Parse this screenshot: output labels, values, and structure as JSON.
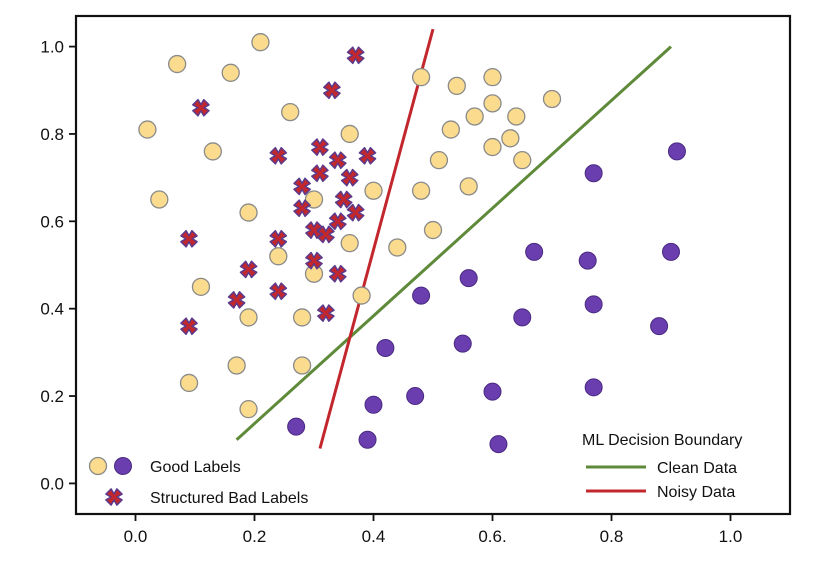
{
  "chart_data": {
    "type": "scatter",
    "xlim": [
      -0.1,
      1.1
    ],
    "ylim": [
      -0.07,
      1.07
    ],
    "xticks": [
      0.0,
      0.2,
      0.4,
      0.6,
      0.8,
      1.0
    ],
    "xtick_labels": [
      "0.0",
      "0.2",
      "0.4",
      "0.6.",
      "0.8",
      "1.0"
    ],
    "yticks": [
      0.0,
      0.2,
      0.4,
      0.6,
      0.8,
      1.0
    ],
    "ytick_labels": [
      "0.0",
      "0.2",
      "0.4",
      "0.6",
      "0.8",
      "1.0"
    ],
    "grid": false,
    "colors": {
      "yellow_fill": "#fbdc8e",
      "yellow_edge": "#8a8a8a",
      "purple_fill": "#6a3eae",
      "cross_fill": "#c1272d",
      "cross_edge": "#5b3a8c",
      "clean_line": "#5e8a3a",
      "noisy_line": "#c1272d"
    },
    "series": [
      {
        "marker": "yellow-circle",
        "points": [
          [
            0.21,
            1.01
          ],
          [
            0.07,
            0.96
          ],
          [
            0.16,
            0.94
          ],
          [
            0.48,
            0.93
          ],
          [
            0.6,
            0.93
          ],
          [
            0.54,
            0.91
          ],
          [
            0.6,
            0.87
          ],
          [
            0.7,
            0.88
          ],
          [
            0.57,
            0.84
          ],
          [
            0.64,
            0.84
          ],
          [
            0.26,
            0.85
          ],
          [
            0.53,
            0.81
          ],
          [
            0.63,
            0.79
          ],
          [
            0.6,
            0.77
          ],
          [
            0.02,
            0.81
          ],
          [
            0.36,
            0.8
          ],
          [
            0.13,
            0.76
          ],
          [
            0.51,
            0.74
          ],
          [
            0.65,
            0.74
          ],
          [
            0.04,
            0.65
          ],
          [
            0.48,
            0.67
          ],
          [
            0.56,
            0.68
          ],
          [
            0.4,
            0.67
          ],
          [
            0.3,
            0.65
          ],
          [
            0.19,
            0.62
          ],
          [
            0.5,
            0.58
          ],
          [
            0.36,
            0.55
          ],
          [
            0.44,
            0.54
          ],
          [
            0.24,
            0.52
          ],
          [
            0.3,
            0.48
          ],
          [
            0.11,
            0.45
          ],
          [
            0.38,
            0.43
          ],
          [
            0.19,
            0.38
          ],
          [
            0.28,
            0.38
          ],
          [
            0.17,
            0.27
          ],
          [
            0.28,
            0.27
          ],
          [
            0.09,
            0.23
          ],
          [
            0.19,
            0.17
          ]
        ]
      },
      {
        "marker": "purple-circle",
        "points": [
          [
            0.91,
            0.76
          ],
          [
            0.77,
            0.71
          ],
          [
            0.67,
            0.53
          ],
          [
            0.76,
            0.51
          ],
          [
            0.9,
            0.53
          ],
          [
            0.56,
            0.47
          ],
          [
            0.48,
            0.43
          ],
          [
            0.77,
            0.41
          ],
          [
            0.65,
            0.38
          ],
          [
            0.88,
            0.36
          ],
          [
            0.55,
            0.32
          ],
          [
            0.42,
            0.31
          ],
          [
            0.77,
            0.22
          ],
          [
            0.6,
            0.21
          ],
          [
            0.47,
            0.2
          ],
          [
            0.4,
            0.18
          ],
          [
            0.27,
            0.13
          ],
          [
            0.39,
            0.1
          ],
          [
            0.61,
            0.09
          ]
        ]
      },
      {
        "marker": "red-cross",
        "points": [
          [
            0.37,
            0.98
          ],
          [
            0.33,
            0.9
          ],
          [
            0.11,
            0.86
          ],
          [
            0.24,
            0.75
          ],
          [
            0.31,
            0.77
          ],
          [
            0.34,
            0.74
          ],
          [
            0.39,
            0.75
          ],
          [
            0.31,
            0.71
          ],
          [
            0.36,
            0.7
          ],
          [
            0.28,
            0.68
          ],
          [
            0.35,
            0.65
          ],
          [
            0.28,
            0.63
          ],
          [
            0.37,
            0.62
          ],
          [
            0.34,
            0.6
          ],
          [
            0.3,
            0.58
          ],
          [
            0.32,
            0.57
          ],
          [
            0.09,
            0.56
          ],
          [
            0.24,
            0.56
          ],
          [
            0.3,
            0.51
          ],
          [
            0.19,
            0.49
          ],
          [
            0.34,
            0.48
          ],
          [
            0.24,
            0.44
          ],
          [
            0.17,
            0.42
          ],
          [
            0.32,
            0.39
          ],
          [
            0.09,
            0.36
          ]
        ]
      }
    ],
    "lines": [
      {
        "name": "Clean Data",
        "x": [
          0.17,
          0.9
        ],
        "y": [
          0.1,
          1.0
        ]
      },
      {
        "name": "Noisy Data",
        "x": [
          0.31,
          0.5
        ],
        "y": [
          0.08,
          1.04
        ]
      }
    ],
    "legend_left": {
      "placement": "bottom-left",
      "entries": [
        {
          "label": "Good Labels",
          "markers": [
            "yellow-circle",
            "purple-circle"
          ]
        },
        {
          "label": "Structured Bad Labels",
          "markers": [
            "red-cross"
          ]
        }
      ]
    },
    "legend_right": {
      "placement": "bottom-right",
      "title": "ML Decision Boundary",
      "entries": [
        {
          "label": "Clean Data",
          "line": "clean"
        },
        {
          "label": "Noisy Data",
          "line": "noisy"
        }
      ]
    }
  }
}
